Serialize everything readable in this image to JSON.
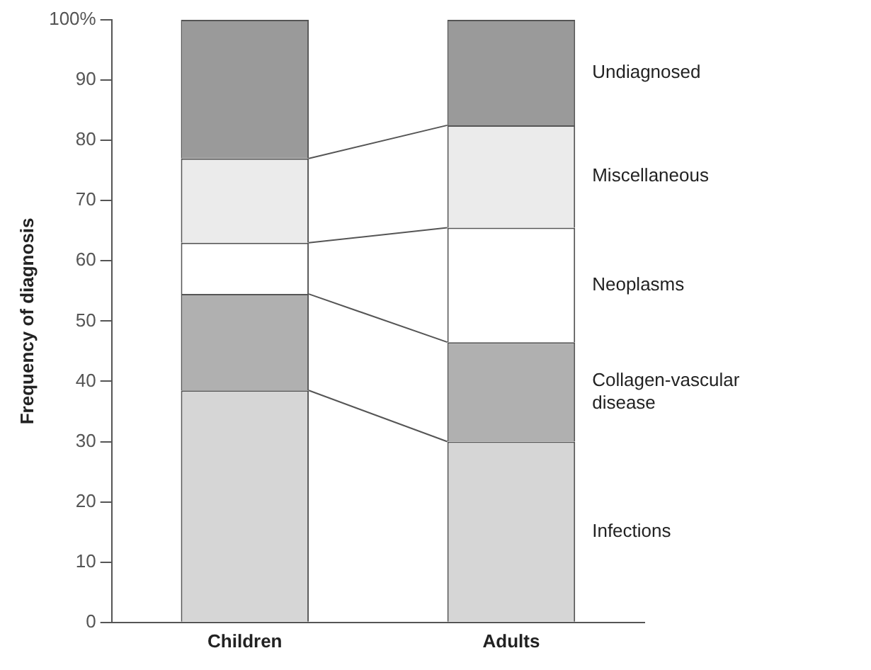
{
  "chart_data": {
    "type": "bar",
    "stacked": true,
    "ylabel": "Frequency of diagnosis",
    "categories": [
      "Children",
      "Adults"
    ],
    "series": [
      {
        "name": "Infections",
        "color": "#d6d6d6",
        "values": [
          38.5,
          30
        ]
      },
      {
        "name": "Collagen-vascular disease",
        "color": "#b0b0b0",
        "values": [
          16,
          16.5
        ]
      },
      {
        "name": "Neoplasms",
        "color": "#ffffff",
        "values": [
          8.5,
          19
        ]
      },
      {
        "name": "Miscellaneous",
        "color": "#ebebeb",
        "values": [
          14,
          17
        ]
      },
      {
        "name": "Undiagnosed",
        "color": "#9a9a9a",
        "values": [
          23,
          17.5
        ]
      }
    ],
    "ylim": [
      0,
      100
    ],
    "yticks": [
      0,
      10,
      20,
      30,
      40,
      50,
      60,
      70,
      80,
      90,
      {
        "value": 100,
        "label": "100%"
      }
    ],
    "grid": false,
    "legend": false
  }
}
